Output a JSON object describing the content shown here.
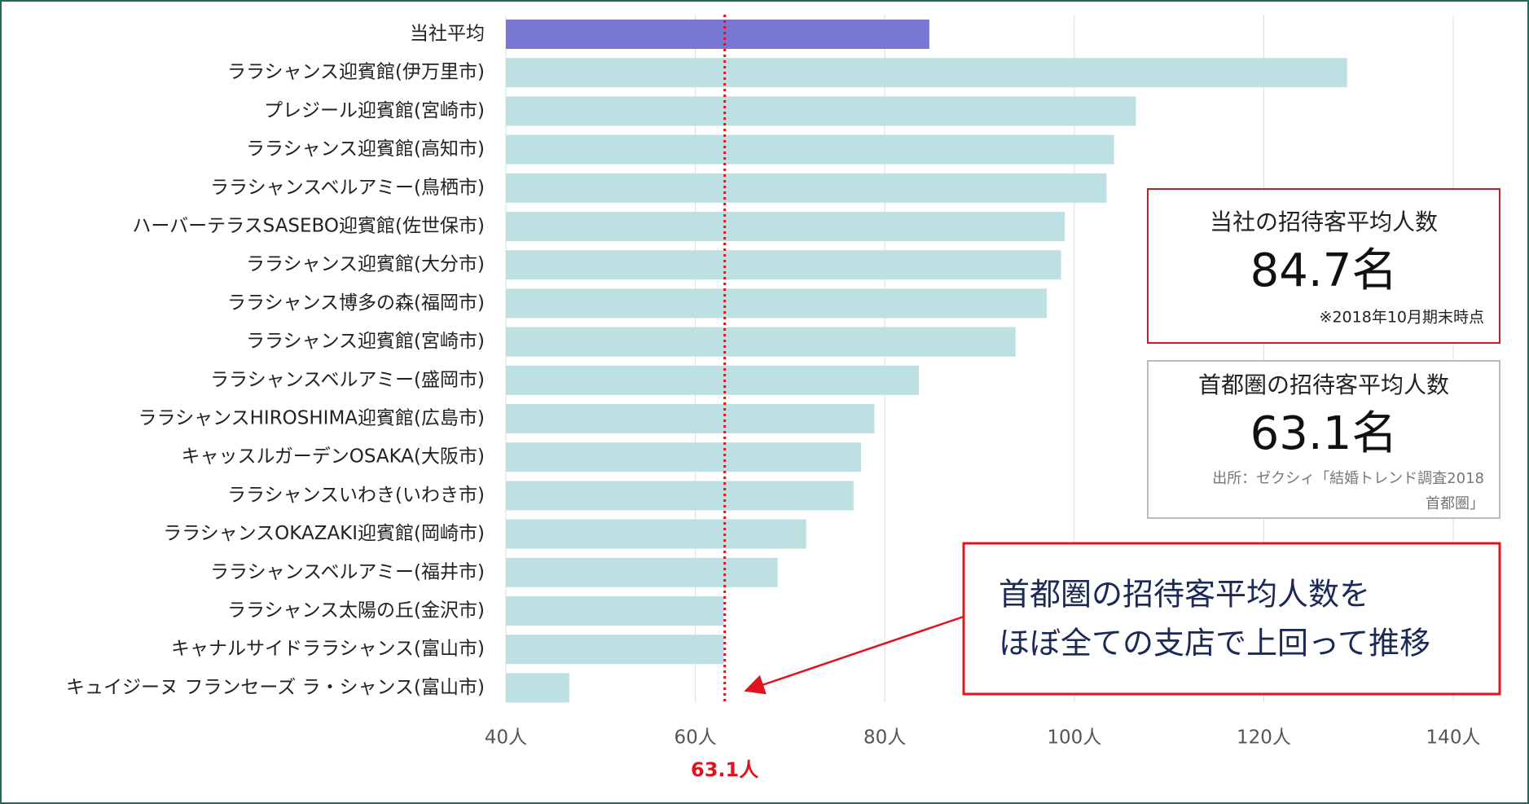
{
  "chart_data": {
    "type": "bar",
    "orientation": "horizontal",
    "categories": [
      "当社平均",
      "ララシャンス迎賓館(伊万里市)",
      "プレジール迎賓館(宮崎市)",
      "ララシャンス迎賓館(高知市)",
      "ララシャンスベルアミー(鳥栖市)",
      "ハーバーテラスSASEBO迎賓館(佐世保市)",
      "ララシャンス迎賓館(大分市)",
      "ララシャンス博多の森(福岡市)",
      "ララシャンス迎賓館(宮崎市)",
      "ララシャンスベルアミー(盛岡市)",
      "ララシャンスHIROSHIMA迎賓館(広島市)",
      "キャッスルガーデンOSAKA(大阪市)",
      "ララシャンスいわき(いわき市)",
      "ララシャンスOKAZAKI迎賓館(岡崎市)",
      "ララシャンスベルアミー(福井市)",
      "ララシャンス太陽の丘(金沢市)",
      "キャナルサイドララシャンス(富山市)",
      "キュイジーヌ フランセーズ ラ・シャンス(富山市)"
    ],
    "values": [
      84.7,
      128.8,
      106.5,
      104.2,
      103.4,
      99.0,
      98.6,
      97.1,
      93.8,
      83.6,
      78.9,
      77.5,
      76.7,
      71.7,
      68.7,
      63.0,
      63.0,
      46.7
    ],
    "colors": [
      "#7878d4",
      "#bde0e3",
      "#bde0e3",
      "#bde0e3",
      "#bde0e3",
      "#bde0e3",
      "#bde0e3",
      "#bde0e3",
      "#bde0e3",
      "#bde0e3",
      "#bde0e3",
      "#bde0e3",
      "#bde0e3",
      "#bde0e3",
      "#bde0e3",
      "#bde0e3",
      "#bde0e3",
      "#bde0e3"
    ],
    "xlim": [
      40,
      140
    ],
    "xticks": [
      {
        "value": 40,
        "label": "40人"
      },
      {
        "value": 60,
        "label": "60人"
      },
      {
        "value": 80,
        "label": "80人"
      },
      {
        "value": 100,
        "label": "100人"
      },
      {
        "value": 120,
        "label": "120人"
      },
      {
        "value": 140,
        "label": "140人"
      }
    ],
    "grid": true,
    "reference_line": {
      "value": 63.1,
      "label": "63.1人",
      "color": "#e0141e"
    },
    "annotations": {
      "company_box": {
        "title": "当社の招待客平均人数",
        "value": "84.7名",
        "note": "※2018年10月期末時点"
      },
      "capital_box": {
        "title": "首都圏の招待客平均人数",
        "value": "63.1名",
        "source": [
          "出所：ゼクシィ「結婚トレンド調査2018",
          "首都圏」"
        ]
      },
      "callout": [
        "首都圏の招待客平均人数を",
        "ほぼ全ての支店で上回って推移"
      ]
    }
  }
}
